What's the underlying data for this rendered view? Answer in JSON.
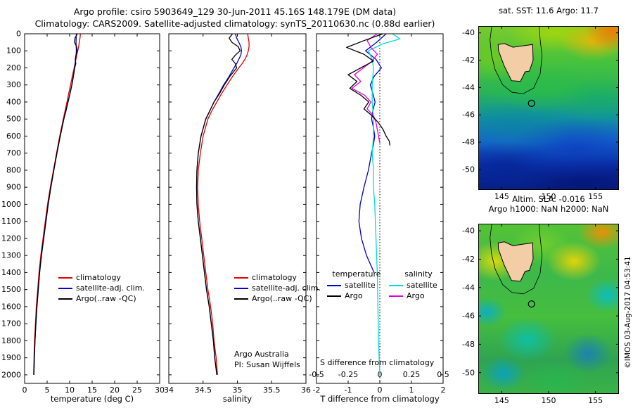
{
  "header": {
    "line1": "Argo profile: csiro 5903649_129 30-Jun-2011 45.16S 148.179E (DM data)",
    "line2": "Climatology: CARS2009. Satellite-adjusted climatology: synTS_20110630.nc (0.88d earlier)"
  },
  "colors": {
    "climatology": "#e00000",
    "satellite_adjusted": "#0000d0",
    "argo": "#000000",
    "satellite_salinity": "#00dcdc",
    "argo_salinity": "#e000e0",
    "land": "#f2cda6"
  },
  "annotations": {
    "line1": "Argo Australia",
    "line2": "PI: Susan Wijffels"
  },
  "legends": {
    "profile": [
      {
        "label": "climatology",
        "color": "#e00000"
      },
      {
        "label": "satellite-adj. clim.",
        "color": "#0000d0"
      },
      {
        "label": "Argo(..raw -QC)",
        "color": "#000000"
      }
    ],
    "diff_temperature": {
      "header": "temperature",
      "items": [
        {
          "label": "satellite",
          "color": "#0000d0"
        },
        {
          "label": "Argo",
          "color": "#000000"
        }
      ]
    },
    "diff_salinity": {
      "header": "salinity",
      "items": [
        {
          "label": "satellite",
          "color": "#00dcdc"
        },
        {
          "label": "Argo",
          "color": "#e000e0"
        }
      ]
    }
  },
  "chart_data": [
    {
      "type": "line",
      "xlabel": "temperature (deg C)",
      "xlim": [
        0,
        30
      ],
      "xticks": [
        0,
        5,
        10,
        15,
        20,
        25,
        30
      ],
      "xtick_labels": [
        "0",
        "5",
        "10",
        "15",
        "20",
        "25",
        "30"
      ],
      "ylim": [
        0,
        2050
      ],
      "yticks": [
        0,
        100,
        200,
        300,
        400,
        500,
        600,
        700,
        800,
        900,
        1000,
        1100,
        1200,
        1300,
        1400,
        1500,
        1600,
        1700,
        1800,
        1900,
        2000
      ],
      "depths": [
        0,
        25,
        50,
        75,
        100,
        125,
        150,
        175,
        200,
        250,
        300,
        350,
        400,
        450,
        500,
        600,
        700,
        800,
        900,
        1000,
        1100,
        1200,
        1300,
        1400,
        1500,
        1600,
        1700,
        1800,
        1900,
        2000
      ],
      "series": [
        {
          "name": "climatology",
          "color": "#e00000",
          "values": [
            12.4,
            12.3,
            12.15,
            12.0,
            11.8,
            11.6,
            11.4,
            11.2,
            11.0,
            10.6,
            10.2,
            9.8,
            9.4,
            9.0,
            8.6,
            7.8,
            7.1,
            6.4,
            5.7,
            5.1,
            4.6,
            4.1,
            3.6,
            3.2,
            2.9,
            2.6,
            2.4,
            2.2,
            2.1,
            2.0
          ]
        },
        {
          "name": "satellite-adj. clim.",
          "color": "#0000d0",
          "values": [
            11.5,
            11.45,
            11.42,
            11.45,
            11.5,
            11.42,
            11.32,
            11.22,
            11.1,
            10.82,
            10.48,
            10.08,
            9.65,
            9.2,
            8.72,
            7.92,
            7.18,
            6.5,
            5.85,
            5.25,
            4.75,
            4.25,
            3.75,
            3.35,
            3.05,
            2.75,
            2.52,
            2.32,
            2.17,
            2.07
          ]
        },
        {
          "name": "Argo(..raw -QC)",
          "color": "#000000",
          "values": [
            11.7,
            11.2,
            11.1,
            11.55,
            11.65,
            11.4,
            11.25,
            11.38,
            11.12,
            10.85,
            10.5,
            10.1,
            9.62,
            9.18,
            8.7,
            7.9,
            7.15,
            6.47,
            5.82,
            5.22,
            4.72,
            4.22,
            3.72,
            3.32,
            3.02,
            2.72,
            2.5,
            2.3,
            2.15,
            2.05
          ]
        }
      ]
    },
    {
      "type": "line",
      "xlabel": "salinity",
      "xlim": [
        34,
        36
      ],
      "xticks": [
        34,
        34.5,
        35,
        35.5,
        36
      ],
      "xtick_labels": [
        "34",
        "34.5",
        "35",
        "35.5",
        "36"
      ],
      "ylim": [
        0,
        2050
      ],
      "yticks": [
        0,
        100,
        200,
        300,
        400,
        500,
        600,
        700,
        800,
        900,
        1000,
        1100,
        1200,
        1300,
        1400,
        1500,
        1600,
        1700,
        1800,
        1900,
        2000
      ],
      "depths": [
        0,
        25,
        50,
        75,
        100,
        125,
        150,
        175,
        200,
        250,
        300,
        350,
        400,
        450,
        500,
        600,
        700,
        800,
        900,
        1000,
        1100,
        1200,
        1300,
        1400,
        1500,
        1600,
        1700,
        1800,
        1900,
        2000
      ],
      "series": [
        {
          "name": "climatology",
          "color": "#e00000",
          "values": [
            35.15,
            35.16,
            35.17,
            35.17,
            35.16,
            35.14,
            35.11,
            35.07,
            35.02,
            34.93,
            34.85,
            34.77,
            34.7,
            34.63,
            34.57,
            34.5,
            34.46,
            34.43,
            34.42,
            34.43,
            34.45,
            34.48,
            34.51,
            34.54,
            34.57,
            34.61,
            34.64,
            34.66,
            34.69,
            34.71
          ]
        },
        {
          "name": "satellite-adj. clim.",
          "color": "#0000d0",
          "values": [
            34.97,
            34.99,
            35.02,
            35.05,
            35.06,
            35.05,
            35.02,
            34.99,
            34.95,
            34.88,
            34.8,
            34.73,
            34.66,
            34.6,
            34.54,
            34.47,
            34.43,
            34.41,
            34.405,
            34.41,
            34.43,
            34.46,
            34.49,
            34.52,
            34.55,
            34.59,
            34.62,
            34.65,
            34.67,
            34.7
          ]
        },
        {
          "name": "Argo(..raw -QC)",
          "color": "#000000",
          "values": [
            34.93,
            34.88,
            34.92,
            35.01,
            35.04,
            34.97,
            34.92,
            34.97,
            34.99,
            34.89,
            34.81,
            34.74,
            34.66,
            34.6,
            34.54,
            34.47,
            34.43,
            34.41,
            34.405,
            34.41,
            34.43,
            34.46,
            34.49,
            34.52,
            34.55,
            34.59,
            34.62,
            34.65,
            34.67,
            34.7
          ]
        }
      ]
    },
    {
      "type": "line",
      "xlabel": "T difference from climatology",
      "xlabel_inner": "S difference from climatology",
      "xlim": [
        -2,
        2
      ],
      "xticks": [
        -2,
        -1,
        0,
        1,
        2
      ],
      "xtick_labels": [
        "-2",
        "-1",
        "0",
        "1",
        "2"
      ],
      "xlim_s": [
        -0.5,
        0.5
      ],
      "xticks_s": [
        -0.5,
        -0.25,
        0,
        0.25,
        0.5
      ],
      "xtick_labels_s": [
        "-0.5",
        "-0.25",
        "0",
        "0.25",
        "0.5"
      ],
      "zero_line": true,
      "ylim": [
        0,
        2050
      ],
      "yticks": [
        0,
        100,
        200,
        300,
        400,
        500,
        600,
        700,
        800,
        900,
        1000,
        1100,
        1200,
        1300,
        1400,
        1500,
        1600,
        1700,
        1800,
        1900,
        2000
      ],
      "series": [
        {
          "name": "satellite T diff",
          "scale": "t",
          "color": "#0000d0",
          "depths": [
            0,
            50,
            100,
            150,
            200,
            250,
            300,
            350,
            400,
            450,
            500,
            550,
            600,
            650,
            700,
            800,
            900,
            1000,
            1100,
            1200,
            1300,
            1400
          ],
          "values": [
            0.2,
            -0.1,
            -0.45,
            -0.12,
            0.05,
            -0.18,
            -0.3,
            -0.22,
            -0.15,
            -0.22,
            -0.26,
            -0.2,
            -0.16,
            -0.2,
            -0.26,
            -0.36,
            -0.5,
            -0.62,
            -0.66,
            -0.58,
            -0.42,
            -0.18
          ]
        },
        {
          "name": "satellite S diff",
          "scale": "s",
          "color": "#00dcdc",
          "depths": [
            0,
            30,
            60,
            100,
            150,
            200,
            300,
            400,
            500,
            600,
            700,
            800,
            900,
            1000,
            1200,
            1400,
            1600,
            1800,
            2000
          ],
          "values": [
            0.1,
            0.16,
            0.02,
            -0.09,
            -0.06,
            -0.05,
            -0.06,
            -0.06,
            -0.05,
            -0.05,
            -0.06,
            -0.05,
            -0.05,
            -0.04,
            -0.03,
            -0.02,
            -0.015,
            -0.01,
            0.0
          ]
        },
        {
          "name": "Argo S diff",
          "scale": "s",
          "color": "#e000e0",
          "depths": [
            0,
            40,
            80,
            120,
            160,
            200,
            240,
            280,
            320,
            360,
            400,
            440,
            480,
            520,
            560,
            600,
            640
          ],
          "values": [
            -0.02,
            -0.1,
            -0.07,
            -0.02,
            -0.06,
            -0.13,
            -0.2,
            -0.15,
            -0.22,
            -0.12,
            -0.07,
            -0.1,
            -0.05,
            -0.03,
            -0.02,
            -0.01,
            0.0
          ]
        },
        {
          "name": "Argo T diff",
          "scale": "t",
          "color": "#000000",
          "depths": [
            0,
            40,
            80,
            120,
            160,
            200,
            240,
            280,
            320,
            360,
            400,
            440,
            480,
            520,
            560,
            600,
            630,
            655
          ],
          "values": [
            0.1,
            -0.5,
            -1.05,
            -0.5,
            -0.2,
            -0.6,
            -1.0,
            -0.72,
            -0.95,
            -0.6,
            -0.35,
            -0.5,
            -0.25,
            -0.05,
            0.1,
            0.2,
            0.3,
            0.32
          ]
        }
      ]
    }
  ],
  "maps": {
    "sst": {
      "title": "sat. SST: 11.6 Argo: 11.7",
      "xticks": [
        145,
        150,
        155
      ],
      "xtick_labels": [
        "145",
        "150",
        "155"
      ],
      "yticks": [
        -40,
        -42,
        -44,
        -46,
        -48,
        -50
      ],
      "ytick_labels": [
        "-40",
        "-42",
        "-44",
        "-46",
        "-48",
        "-50"
      ],
      "marker": {
        "lon": 148.179,
        "lat": -45.16
      }
    },
    "sla": {
      "title1": "Altim. SLA: -0.016",
      "title2": "Argo h1000: NaN h2000: NaN",
      "xticks": [
        145,
        150,
        155
      ],
      "xtick_labels": [
        "145",
        "150",
        "155"
      ],
      "yticks": [
        -40,
        -42,
        -44,
        -46,
        -48,
        -50
      ],
      "ytick_labels": [
        "-40",
        "-42",
        "-44",
        "-46",
        "-48",
        "-50"
      ],
      "marker": {
        "lon": 148.179,
        "lat": -45.16
      }
    }
  },
  "credit": "©IMOS 03-Aug-2017 04:53:41"
}
